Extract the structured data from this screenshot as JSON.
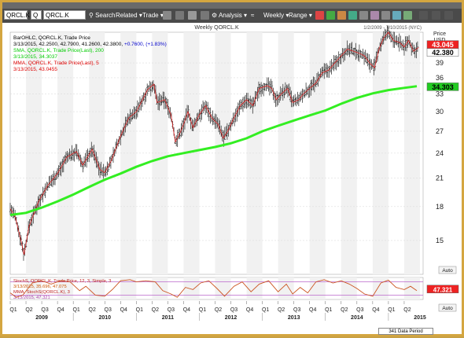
{
  "window": {
    "symbol_box": "QRCL.K",
    "q_box": "Q",
    "symbol_input": "QRCL.K"
  },
  "toolbar": {
    "search": "Search",
    "related": "Related",
    "trade": "Trade",
    "analysis": "Analysis",
    "weekly": "Weekly",
    "range": "Range"
  },
  "chart_data": [
    {
      "type": "line",
      "title": "Weekly QORCL.K",
      "date_range": "1/2/2009 - 7/10/2015 (NYC)",
      "x_range": [
        2009.0,
        2015.55
      ],
      "ylim": [
        12.5,
        46
      ],
      "y_scale": "log",
      "yaxis": {
        "title": "Price",
        "unit": "USD",
        "ticks": [
          15,
          18,
          21,
          24,
          27,
          30,
          33,
          36,
          39
        ]
      },
      "x_year_labels": [
        "2009",
        "2010",
        "2011",
        "2012",
        "2013",
        "2014",
        "2015"
      ],
      "x_quarter_labels": [
        "Q1",
        "Q2",
        "Q3",
        "Q4",
        "Q1",
        "Q2",
        "Q3",
        "Q4",
        "Q1",
        "Q2",
        "Q3",
        "Q4",
        "Q1",
        "Q2",
        "Q3",
        "Q4",
        "Q1",
        "Q2",
        "Q3",
        "Q4",
        "Q1",
        "Q2",
        "Q3",
        "Q4",
        "Q1",
        "Q2"
      ],
      "legend": [
        {
          "text": "BarOHLC, QORCL.K, Trade Price",
          "color": "#000000"
        },
        {
          "text": "3/13/2015, 42.2500, 42.7900, 41.2600, 42.3800,",
          "extra": "+0.7600, (+1.83%)",
          "color": "#000000",
          "extra_color": "#0000cc"
        },
        {
          "text": "SMA, QORCL.K, Trade Price(Last), 200",
          "color": "#00cc00"
        },
        {
          "text": "3/13/2015, 34.3037",
          "color": "#00cc00"
        },
        {
          "text": "MMA, QORCL.K, Trade Price(Last), 5",
          "color": "#dd0000"
        },
        {
          "text": "3/13/2015, 43.0455",
          "color": "#dd0000"
        }
      ],
      "price_tags": [
        {
          "label": "43.045",
          "value": 43.05,
          "bg": "#ee2222",
          "fg": "#ffffff"
        },
        {
          "label": "42.380",
          "value": 42.38,
          "bg": "#ffffff",
          "fg": "#000000"
        },
        {
          "label": "34.303",
          "value": 34.3,
          "bg": "#22cc22",
          "fg": "#000000"
        }
      ],
      "auto_button": "Auto",
      "series": [
        {
          "name": "Trade Price",
          "color": "#222222",
          "points": [
            [
              2009.0,
              17.8
            ],
            [
              2009.08,
              17.0
            ],
            [
              2009.18,
              14.8
            ],
            [
              2009.22,
              13.9
            ],
            [
              2009.3,
              16.2
            ],
            [
              2009.45,
              18.5
            ],
            [
              2009.6,
              20.2
            ],
            [
              2009.75,
              21.5
            ],
            [
              2009.9,
              23.5
            ],
            [
              2010.05,
              24.2
            ],
            [
              2010.15,
              22.5
            ],
            [
              2010.3,
              24.5
            ],
            [
              2010.42,
              22.0
            ],
            [
              2010.5,
              21.6
            ],
            [
              2010.6,
              23.0
            ],
            [
              2010.75,
              26.3
            ],
            [
              2010.88,
              29.0
            ],
            [
              2011.0,
              30.0
            ],
            [
              2011.1,
              32.0
            ],
            [
              2011.18,
              33.8
            ],
            [
              2011.28,
              34.8
            ],
            [
              2011.33,
              31.5
            ],
            [
              2011.45,
              32.0
            ],
            [
              2011.55,
              29.5
            ],
            [
              2011.62,
              25.5
            ],
            [
              2011.68,
              26.5
            ],
            [
              2011.75,
              28.0
            ],
            [
              2011.82,
              30.0
            ],
            [
              2011.9,
              27.5
            ],
            [
              2012.0,
              29.5
            ],
            [
              2012.1,
              31.0
            ],
            [
              2012.2,
              29.0
            ],
            [
              2012.3,
              28.0
            ],
            [
              2012.38,
              26.0
            ],
            [
              2012.45,
              27.0
            ],
            [
              2012.55,
              29.0
            ],
            [
              2012.65,
              31.0
            ],
            [
              2012.75,
              32.0
            ],
            [
              2012.85,
              31.0
            ],
            [
              2012.95,
              34.0
            ],
            [
              2013.08,
              34.5
            ],
            [
              2013.15,
              34.0
            ],
            [
              2013.22,
              32.0
            ],
            [
              2013.3,
              33.0
            ],
            [
              2013.4,
              34.0
            ],
            [
              2013.48,
              31.5
            ],
            [
              2013.58,
              32.0
            ],
            [
              2013.65,
              33.0
            ],
            [
              2013.75,
              34.0
            ],
            [
              2013.85,
              35.0
            ],
            [
              2013.95,
              37.0
            ],
            [
              2014.05,
              37.5
            ],
            [
              2014.15,
              39.0
            ],
            [
              2014.25,
              40.5
            ],
            [
              2014.35,
              42.0
            ],
            [
              2014.45,
              41.5
            ],
            [
              2014.55,
              41.0
            ],
            [
              2014.62,
              40.5
            ],
            [
              2014.7,
              39.0
            ],
            [
              2014.78,
              38.0
            ],
            [
              2014.85,
              42.0
            ],
            [
              2014.92,
              44.5
            ],
            [
              2015.0,
              46.0
            ],
            [
              2015.08,
              44.0
            ],
            [
              2015.18,
              43.5
            ],
            [
              2015.25,
              42.5
            ],
            [
              2015.32,
              44.0
            ],
            [
              2015.4,
              41.5
            ],
            [
              2015.48,
              42.4
            ]
          ]
        },
        {
          "name": "SMA 200",
          "color": "#33ee22",
          "points": [
            [
              2009.0,
              17.2
            ],
            [
              2009.25,
              17.4
            ],
            [
              2009.5,
              17.9
            ],
            [
              2009.75,
              18.5
            ],
            [
              2010.0,
              19.2
            ],
            [
              2010.25,
              20.0
            ],
            [
              2010.5,
              20.8
            ],
            [
              2010.75,
              21.5
            ],
            [
              2011.0,
              22.3
            ],
            [
              2011.25,
              23.0
            ],
            [
              2011.5,
              23.6
            ],
            [
              2011.75,
              24.0
            ],
            [
              2012.0,
              24.4
            ],
            [
              2012.25,
              24.8
            ],
            [
              2012.5,
              25.3
            ],
            [
              2012.75,
              26.0
            ],
            [
              2013.0,
              27.0
            ],
            [
              2013.25,
              27.8
            ],
            [
              2013.5,
              28.6
            ],
            [
              2013.75,
              29.4
            ],
            [
              2014.0,
              30.2
            ],
            [
              2014.25,
              31.3
            ],
            [
              2014.5,
              32.3
            ],
            [
              2014.75,
              33.1
            ],
            [
              2015.0,
              33.7
            ],
            [
              2015.25,
              34.1
            ],
            [
              2015.45,
              34.4
            ]
          ]
        }
      ]
    },
    {
      "type": "line",
      "ylim": [
        0,
        100
      ],
      "legend": [
        {
          "text": "StochS, QORCL.K, Trade Price, 12, 3, Simple, 3",
          "color": "#bb2222"
        },
        {
          "text": "3/13/2015, 35.696, 47.075",
          "color": "#cc5500"
        },
        {
          "text": "MMA, StochS(QORCL.K), 3",
          "color": "#bb2222"
        },
        {
          "text": "3/13/2015, 47.321",
          "color": "#aa44aa"
        }
      ],
      "reference_lines": [
        80,
        20
      ],
      "price_tags": [
        {
          "label": "47.321",
          "value": 47.32,
          "bg": "#ee2222",
          "fg": "#ffffff"
        }
      ],
      "auto_button": "Auto",
      "series": [
        {
          "name": "StochS",
          "color": "#cc5522",
          "points": [
            [
              2009.0,
              30
            ],
            [
              2009.1,
              10
            ],
            [
              2009.2,
              20
            ],
            [
              2009.35,
              75
            ],
            [
              2009.5,
              85
            ],
            [
              2009.65,
              70
            ],
            [
              2009.8,
              85
            ],
            [
              2009.95,
              80
            ],
            [
              2010.1,
              40
            ],
            [
              2010.2,
              60
            ],
            [
              2010.35,
              20
            ],
            [
              2010.5,
              15
            ],
            [
              2010.62,
              45
            ],
            [
              2010.75,
              85
            ],
            [
              2010.9,
              90
            ],
            [
              2011.0,
              80
            ],
            [
              2011.15,
              85
            ],
            [
              2011.3,
              80
            ],
            [
              2011.42,
              40
            ],
            [
              2011.55,
              25
            ],
            [
              2011.65,
              10
            ],
            [
              2011.78,
              55
            ],
            [
              2011.9,
              45
            ],
            [
              2012.02,
              75
            ],
            [
              2012.15,
              85
            ],
            [
              2012.28,
              50
            ],
            [
              2012.4,
              15
            ],
            [
              2012.55,
              60
            ],
            [
              2012.68,
              80
            ],
            [
              2012.82,
              35
            ],
            [
              2012.95,
              70
            ],
            [
              2013.1,
              85
            ],
            [
              2013.25,
              35
            ],
            [
              2013.38,
              70
            ],
            [
              2013.48,
              25
            ],
            [
              2013.6,
              55
            ],
            [
              2013.72,
              30
            ],
            [
              2013.85,
              80
            ],
            [
              2013.98,
              90
            ],
            [
              2014.12,
              75
            ],
            [
              2014.25,
              85
            ],
            [
              2014.38,
              70
            ],
            [
              2014.5,
              50
            ],
            [
              2014.62,
              25
            ],
            [
              2014.75,
              15
            ],
            [
              2014.88,
              75
            ],
            [
              2015.0,
              88
            ],
            [
              2015.12,
              55
            ],
            [
              2015.25,
              45
            ],
            [
              2015.35,
              60
            ],
            [
              2015.45,
              40
            ]
          ]
        }
      ]
    }
  ],
  "status": {
    "data_period": "341 Data Period"
  }
}
